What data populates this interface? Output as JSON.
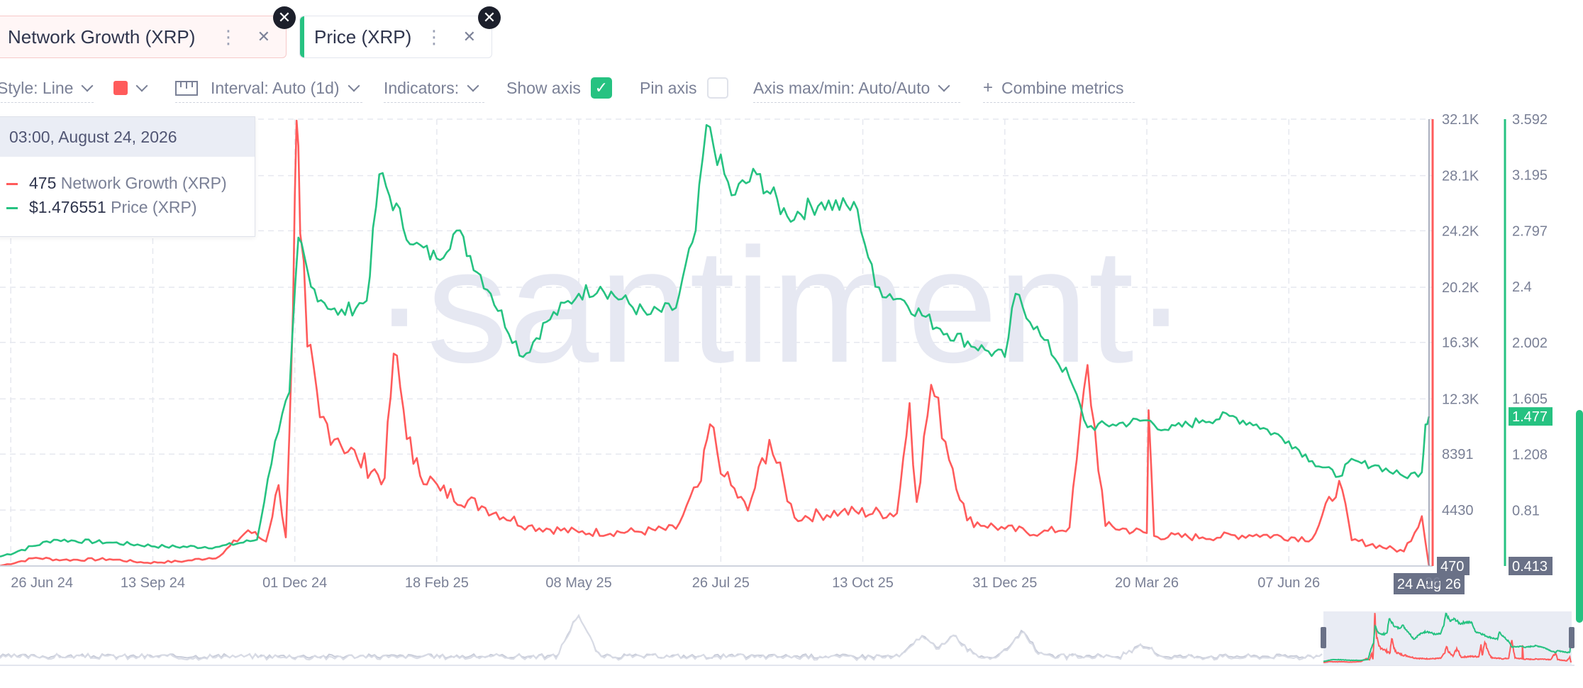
{
  "tabs": [
    {
      "label": "Network Growth (XRP)",
      "color": "#ff5b5b"
    },
    {
      "label": "Price (XRP)",
      "color": "#26c281"
    }
  ],
  "toolbar": {
    "style_label": "Style: Line",
    "color_swatch": "#ff5b5b",
    "interval_label": "Interval: Auto (1d)",
    "indicators_label": "Indicators:",
    "show_axis_label": "Show axis",
    "show_axis_checked": true,
    "pin_axis_label": "Pin axis",
    "pin_axis_checked": false,
    "axis_maxmin_label": "Axis max/min: Auto/Auto",
    "combine_label": "Combine metrics",
    "combine_icon": "+"
  },
  "tooltip": {
    "date": "03:00, August 24, 2026",
    "rows": [
      {
        "value": "475",
        "name": "Network Growth (XRP)",
        "color": "#ff5b5b"
      },
      {
        "value": "$1.476551",
        "name": "Price (XRP)",
        "color": "#26c281"
      }
    ]
  },
  "watermark": "·santiment·",
  "chart_data": {
    "type": "line",
    "x_ticks": [
      "26 Jun 24",
      "13 Sep 24",
      "01 Dec 24",
      "18 Feb 25",
      "08 May 25",
      "26 Jul 25",
      "13 Oct 25",
      "31 Dec 25",
      "20 Mar 26",
      "07 Jun 26",
      "26"
    ],
    "x_tick_dates": [
      "2024-06-26",
      "2024-09-13",
      "2024-12-01",
      "2025-02-18",
      "2025-05-08",
      "2025-07-26",
      "2025-10-13",
      "2025-12-31",
      "2026-03-20",
      "2026-06-07",
      "2026-08-26"
    ],
    "x_range": [
      "2024-06-20",
      "2026-08-26"
    ],
    "crosshair_label": "24 Aug 26",
    "crosshair_date": "2026-08-24",
    "axes": [
      {
        "series": "Network Growth (XRP)",
        "color": "#ff5b5b",
        "ticks": [
          "32.1K",
          "28.1K",
          "24.2K",
          "20.2K",
          "16.3K",
          "12.3K",
          "8391",
          "4430"
        ],
        "tick_values": [
          32100,
          28100,
          24200,
          20200,
          16300,
          12300,
          8391,
          4430
        ],
        "min_label": "470",
        "range": [
          470,
          32100
        ]
      },
      {
        "series": "Price (XRP)",
        "color": "#26c281",
        "ticks": [
          "3.592",
          "3.195",
          "2.797",
          "2.4",
          "2.002",
          "1.605",
          "1.208",
          "0.81"
        ],
        "tick_values": [
          3.592,
          3.195,
          2.797,
          2.4,
          2.002,
          1.605,
          1.208,
          0.81
        ],
        "min_label": "0.413",
        "current_label": "1.477",
        "current_value": 1.477,
        "range": [
          0.413,
          3.592
        ]
      }
    ],
    "grid": true,
    "series": [
      {
        "name": "Network Growth (XRP)",
        "color": "#ff5b5b",
        "points": [
          [
            "2024-06-20",
            480
          ],
          [
            "2024-07-10",
            1050
          ],
          [
            "2024-07-25",
            900
          ],
          [
            "2024-08-20",
            950
          ],
          [
            "2024-09-10",
            700
          ],
          [
            "2024-10-01",
            820
          ],
          [
            "2024-10-20",
            1150
          ],
          [
            "2024-11-05",
            3000
          ],
          [
            "2024-11-15",
            2200
          ],
          [
            "2024-11-22",
            6200
          ],
          [
            "2024-11-26",
            2500
          ],
          [
            "2024-11-30",
            18500
          ],
          [
            "2024-12-02",
            32000
          ],
          [
            "2024-12-04",
            24000
          ],
          [
            "2024-12-08",
            16000
          ],
          [
            "2024-12-15",
            11000
          ],
          [
            "2024-12-25",
            9500
          ],
          [
            "2025-01-05",
            8000
          ],
          [
            "2025-01-20",
            6700
          ],
          [
            "2025-01-25",
            15500
          ],
          [
            "2025-02-05",
            7700
          ],
          [
            "2025-02-20",
            5800
          ],
          [
            "2025-03-15",
            4700
          ],
          [
            "2025-04-10",
            3300
          ],
          [
            "2025-05-08",
            2850
          ],
          [
            "2025-06-10",
            2900
          ],
          [
            "2025-07-01",
            3100
          ],
          [
            "2025-07-15",
            6500
          ],
          [
            "2025-07-20",
            10500
          ],
          [
            "2025-07-28",
            6800
          ],
          [
            "2025-08-10",
            4400
          ],
          [
            "2025-08-22",
            9400
          ],
          [
            "2025-09-05",
            3900
          ],
          [
            "2025-10-01",
            4300
          ],
          [
            "2025-11-01",
            4200
          ],
          [
            "2025-11-08",
            12000
          ],
          [
            "2025-11-12",
            5000
          ],
          [
            "2025-11-20",
            13300
          ],
          [
            "2025-12-10",
            3700
          ],
          [
            "2025-12-31",
            3100
          ],
          [
            "2026-01-20",
            2800
          ],
          [
            "2026-02-05",
            3200
          ],
          [
            "2026-02-15",
            14700
          ],
          [
            "2026-02-25",
            3300
          ],
          [
            "2026-03-20",
            2800
          ],
          [
            "2026-03-21",
            11500
          ],
          [
            "2026-03-24",
            2600
          ],
          [
            "2026-04-20",
            2500
          ],
          [
            "2026-05-20",
            2700
          ],
          [
            "2026-06-20",
            2400
          ],
          [
            "2026-07-05",
            6500
          ],
          [
            "2026-07-12",
            2300
          ],
          [
            "2026-08-10",
            1500
          ],
          [
            "2026-08-20",
            4000
          ],
          [
            "2026-08-24",
            475
          ]
        ]
      },
      {
        "name": "Price (XRP)",
        "color": "#26c281",
        "points": [
          [
            "2024-06-20",
            0.48
          ],
          [
            "2024-07-20",
            0.6
          ],
          [
            "2024-08-20",
            0.58
          ],
          [
            "2024-09-20",
            0.55
          ],
          [
            "2024-10-20",
            0.55
          ],
          [
            "2024-11-10",
            0.6
          ],
          [
            "2024-11-20",
            1.3
          ],
          [
            "2024-11-28",
            1.65
          ],
          [
            "2024-12-03",
            2.75
          ],
          [
            "2024-12-10",
            2.4
          ],
          [
            "2024-12-25",
            2.2
          ],
          [
            "2025-01-10",
            2.3
          ],
          [
            "2025-01-17",
            3.2
          ],
          [
            "2025-02-05",
            2.7
          ],
          [
            "2025-02-18",
            2.6
          ],
          [
            "2025-03-01",
            2.8
          ],
          [
            "2025-03-20",
            2.35
          ],
          [
            "2025-04-07",
            1.9
          ],
          [
            "2025-04-20",
            2.15
          ],
          [
            "2025-05-08",
            2.35
          ],
          [
            "2025-05-20",
            2.4
          ],
          [
            "2025-06-15",
            2.2
          ],
          [
            "2025-07-01",
            2.25
          ],
          [
            "2025-07-12",
            2.8
          ],
          [
            "2025-07-18",
            3.55
          ],
          [
            "2025-08-01",
            3.05
          ],
          [
            "2025-08-15",
            3.2
          ],
          [
            "2025-09-01",
            2.9
          ],
          [
            "2025-09-20",
            3.0
          ],
          [
            "2025-10-10",
            2.95
          ],
          [
            "2025-10-20",
            2.4
          ],
          [
            "2025-11-05",
            2.3
          ],
          [
            "2025-11-25",
            2.1
          ],
          [
            "2025-12-20",
            1.95
          ],
          [
            "2025-12-31",
            1.9
          ],
          [
            "2026-01-06",
            2.35
          ],
          [
            "2026-01-20",
            2.05
          ],
          [
            "2026-02-05",
            1.75
          ],
          [
            "2026-02-15",
            1.4
          ],
          [
            "2026-03-01",
            1.42
          ],
          [
            "2026-03-20",
            1.45
          ],
          [
            "2026-04-01",
            1.38
          ],
          [
            "2026-04-20",
            1.45
          ],
          [
            "2026-05-05",
            1.48
          ],
          [
            "2026-05-20",
            1.42
          ],
          [
            "2026-06-07",
            1.3
          ],
          [
            "2026-06-20",
            1.16
          ],
          [
            "2026-07-05",
            1.05
          ],
          [
            "2026-07-10",
            1.15
          ],
          [
            "2026-07-25",
            1.13
          ],
          [
            "2026-08-10",
            1.05
          ],
          [
            "2026-08-20",
            1.08
          ],
          [
            "2026-08-22",
            1.42
          ],
          [
            "2026-08-24",
            1.477
          ]
        ]
      }
    ]
  }
}
